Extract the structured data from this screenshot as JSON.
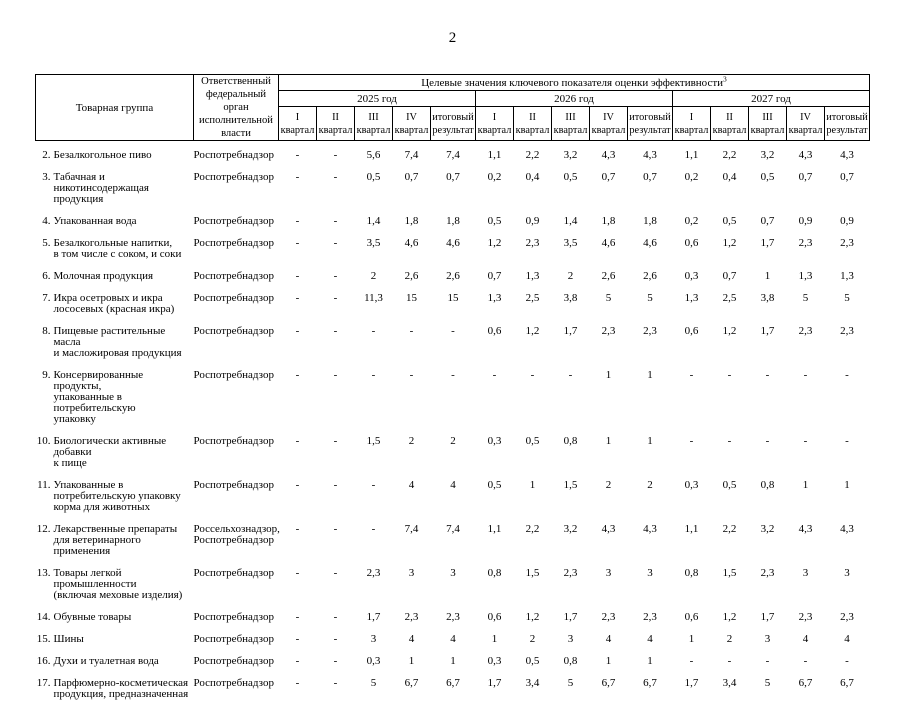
{
  "page": {
    "number": "2"
  },
  "table": {
    "product_group_header": "Товарная группа",
    "agency_header": "Ответственный\nфедеральный орган\nисполнительной\nвласти",
    "kpi_header": "Целевые значения ключевого показателя оценки эффективности",
    "kpi_footnote_mark": "3",
    "years": [
      "2025 год",
      "2026 год",
      "2027 год"
    ],
    "quarter_columns": [
      {
        "line1": "I",
        "line2": "квартал"
      },
      {
        "line1": "II",
        "line2": "квартал"
      },
      {
        "line1": "III",
        "line2": "квартал"
      },
      {
        "line1": "IV",
        "line2": "квартал"
      },
      {
        "line1": "итоговый",
        "line2": "результат"
      }
    ],
    "rows": [
      {
        "num": "2.",
        "name": "Безалкогольное пиво",
        "agency": "Роспотребнадзор",
        "values": [
          "-",
          "-",
          "5,6",
          "7,4",
          "7,4",
          "1,1",
          "2,2",
          "3,2",
          "4,3",
          "4,3",
          "1,1",
          "2,2",
          "3,2",
          "4,3",
          "4,3"
        ]
      },
      {
        "num": "3.",
        "name": "Табачная и никотинсодержащая\nпродукция",
        "agency": "Роспотребнадзор",
        "values": [
          "-",
          "-",
          "0,5",
          "0,7",
          "0,7",
          "0,2",
          "0,4",
          "0,5",
          "0,7",
          "0,7",
          "0,2",
          "0,4",
          "0,5",
          "0,7",
          "0,7"
        ]
      },
      {
        "num": "4.",
        "name": "Упакованная вода",
        "agency": "Роспотребнадзор",
        "values": [
          "-",
          "-",
          "1,4",
          "1,8",
          "1,8",
          "0,5",
          "0,9",
          "1,4",
          "1,8",
          "1,8",
          "0,2",
          "0,5",
          "0,7",
          "0,9",
          "0,9"
        ]
      },
      {
        "num": "5.",
        "name": "Безалкогольные напитки,\nв том числе с соком, и соки",
        "agency": "Роспотребнадзор",
        "values": [
          "-",
          "-",
          "3,5",
          "4,6",
          "4,6",
          "1,2",
          "2,3",
          "3,5",
          "4,6",
          "4,6",
          "0,6",
          "1,2",
          "1,7",
          "2,3",
          "2,3"
        ]
      },
      {
        "num": "6.",
        "name": "Молочная продукция",
        "agency": "Роспотребнадзор",
        "values": [
          "-",
          "-",
          "2",
          "2,6",
          "2,6",
          "0,7",
          "1,3",
          "2",
          "2,6",
          "2,6",
          "0,3",
          "0,7",
          "1",
          "1,3",
          "1,3"
        ]
      },
      {
        "num": "7.",
        "name": "Икра осетровых и икра\nлососевых (красная икра)",
        "agency": "Роспотребнадзор",
        "values": [
          "-",
          "-",
          "11,3",
          "15",
          "15",
          "1,3",
          "2,5",
          "3,8",
          "5",
          "5",
          "1,3",
          "2,5",
          "3,8",
          "5",
          "5"
        ]
      },
      {
        "num": "8.",
        "name": "Пищевые растительные масла\nи масложировая продукция",
        "agency": "Роспотребнадзор",
        "values": [
          "-",
          "-",
          "-",
          "-",
          "-",
          "0,6",
          "1,2",
          "1,7",
          "2,3",
          "2,3",
          "0,6",
          "1,2",
          "1,7",
          "2,3",
          "2,3"
        ]
      },
      {
        "num": "9.",
        "name": "Консервированные продукты,\nупакованные в потребительскую\nупаковку",
        "agency": "Роспотребнадзор",
        "values": [
          "-",
          "-",
          "-",
          "-",
          "-",
          "-",
          "-",
          "-",
          "1",
          "1",
          "-",
          "-",
          "-",
          "-",
          "-"
        ]
      },
      {
        "num": "10.",
        "name": "Биологически активные добавки\nк пище",
        "agency": "Роспотребнадзор",
        "values": [
          "-",
          "-",
          "1,5",
          "2",
          "2",
          "0,3",
          "0,5",
          "0,8",
          "1",
          "1",
          "-",
          "-",
          "-",
          "-",
          "-"
        ]
      },
      {
        "num": "11.",
        "name": "Упакованные в\nпотребительскую упаковку\nкорма для животных",
        "agency": "Роспотребнадзор",
        "values": [
          "-",
          "-",
          "-",
          "4",
          "4",
          "0,5",
          "1",
          "1,5",
          "2",
          "2",
          "0,3",
          "0,5",
          "0,8",
          "1",
          "1"
        ]
      },
      {
        "num": "12.",
        "name": "Лекарственные препараты\nдля ветеринарного применения",
        "agency": "Россельхознадзор,\nРоспотребнадзор",
        "values": [
          "-",
          "-",
          "-",
          "7,4",
          "7,4",
          "1,1",
          "2,2",
          "3,2",
          "4,3",
          "4,3",
          "1,1",
          "2,2",
          "3,2",
          "4,3",
          "4,3"
        ]
      },
      {
        "num": "13.",
        "name": "Товары легкой\nпромышленности\n(включая меховые изделия)",
        "agency": "Роспотребнадзор",
        "values": [
          "-",
          "-",
          "2,3",
          "3",
          "3",
          "0,8",
          "1,5",
          "2,3",
          "3",
          "3",
          "0,8",
          "1,5",
          "2,3",
          "3",
          "3"
        ]
      },
      {
        "num": "14.",
        "name": "Обувные товары",
        "agency": "Роспотребнадзор",
        "values": [
          "-",
          "-",
          "1,7",
          "2,3",
          "2,3",
          "0,6",
          "1,2",
          "1,7",
          "2,3",
          "2,3",
          "0,6",
          "1,2",
          "1,7",
          "2,3",
          "2,3"
        ]
      },
      {
        "num": "15.",
        "name": "Шины",
        "agency": "Роспотребнадзор",
        "values": [
          "-",
          "-",
          "3",
          "4",
          "4",
          "1",
          "2",
          "3",
          "4",
          "4",
          "1",
          "2",
          "3",
          "4",
          "4"
        ]
      },
      {
        "num": "16.",
        "name": "Духи и туалетная вода",
        "agency": "Роспотребнадзор",
        "values": [
          "-",
          "-",
          "0,3",
          "1",
          "1",
          "0,3",
          "0,5",
          "0,8",
          "1",
          "1",
          "-",
          "-",
          "-",
          "-",
          "-"
        ]
      },
      {
        "num": "17.",
        "name": "Парфюмерно-косметическая\nпродукция, предназначенная",
        "agency": "Роспотребнадзор",
        "values": [
          "-",
          "-",
          "5",
          "6,7",
          "6,7",
          "1,7",
          "3,4",
          "5",
          "6,7",
          "6,7",
          "1,7",
          "3,4",
          "5",
          "6,7",
          "6,7"
        ]
      }
    ]
  }
}
